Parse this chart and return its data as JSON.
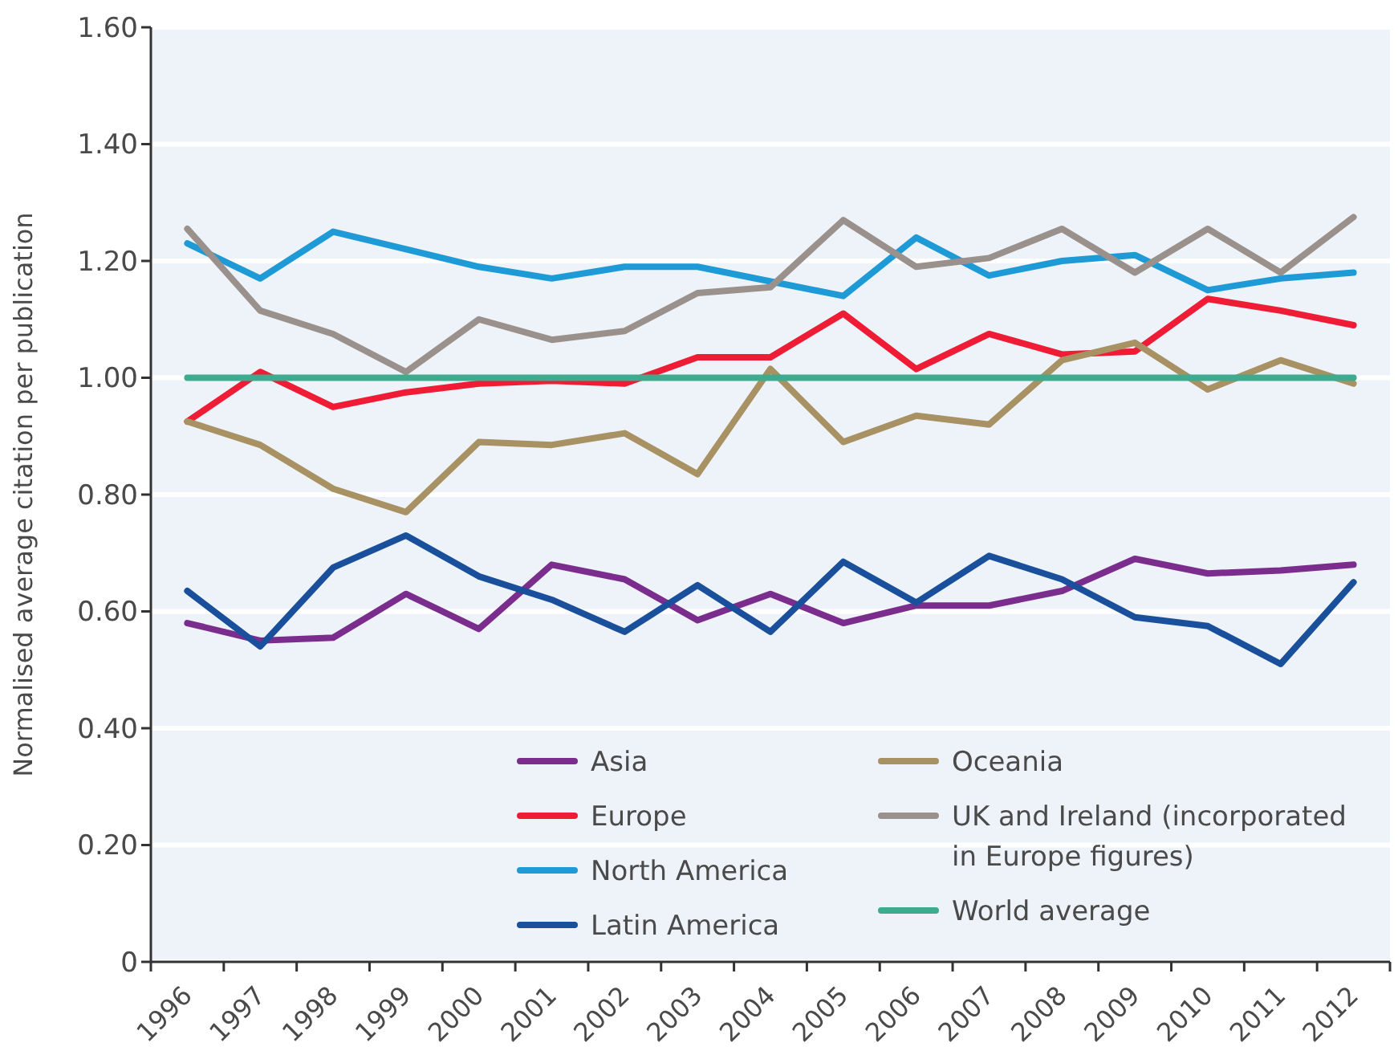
{
  "chart_data": {
    "type": "line",
    "ylabel": "Normalised average citation per publication",
    "categories": [
      "1996",
      "1997",
      "1998",
      "1999",
      "2000",
      "2001",
      "2002",
      "2003",
      "2004",
      "2005",
      "2006",
      "2007",
      "2008",
      "2009",
      "2010",
      "2011",
      "2012"
    ],
    "series": [
      {
        "name": "Asia",
        "color": "#7b2d8e",
        "values": [
          0.58,
          0.55,
          0.555,
          0.63,
          0.57,
          0.68,
          0.655,
          0.585,
          0.63,
          0.58,
          0.61,
          0.61,
          0.635,
          0.69,
          0.665,
          0.67,
          0.68
        ]
      },
      {
        "name": "Europe",
        "color": "#ee1c35",
        "values": [
          0.925,
          1.01,
          0.95,
          0.975,
          0.99,
          0.995,
          0.99,
          1.035,
          1.035,
          1.11,
          1.015,
          1.075,
          1.04,
          1.045,
          1.135,
          1.115,
          1.09
        ]
      },
      {
        "name": "North America",
        "color": "#1e9ad6",
        "values": [
          1.23,
          1.17,
          1.25,
          1.22,
          1.19,
          1.17,
          1.19,
          1.19,
          1.165,
          1.14,
          1.24,
          1.175,
          1.2,
          1.21,
          1.15,
          1.17,
          1.18
        ]
      },
      {
        "name": "Latin America",
        "color": "#1a4f9c",
        "values": [
          0.635,
          0.54,
          0.675,
          0.73,
          0.66,
          0.62,
          0.565,
          0.645,
          0.565,
          0.685,
          0.615,
          0.695,
          0.655,
          0.59,
          0.575,
          0.51,
          0.65
        ]
      },
      {
        "name": "Oceania",
        "color": "#a89162",
        "values": [
          0.925,
          0.885,
          0.81,
          0.77,
          0.89,
          0.885,
          0.905,
          0.835,
          1.015,
          0.89,
          0.935,
          0.92,
          1.03,
          1.06,
          0.98,
          1.03,
          0.99
        ]
      },
      {
        "name": "UK and Ireland (incorporated in Europe figures)",
        "color": "#9a918c",
        "values": [
          1.255,
          1.115,
          1.075,
          1.01,
          1.1,
          1.065,
          1.08,
          1.145,
          1.155,
          1.27,
          1.19,
          1.205,
          1.255,
          1.18,
          1.255,
          1.18,
          1.275
        ]
      },
      {
        "name": "World average",
        "color": "#3fab8e",
        "values": [
          1,
          1,
          1,
          1,
          1,
          1,
          1,
          1,
          1,
          1,
          1,
          1,
          1,
          1,
          1,
          1,
          1
        ]
      }
    ],
    "ylim": [
      0,
      1.6
    ],
    "yticks": [
      0,
      {
        "value": 0.2,
        "label": "0.20"
      },
      {
        "value": 0.4,
        "label": "0.40"
      },
      {
        "value": 0.6,
        "label": "0.60"
      },
      {
        "value": 0.8,
        "label": "0.80"
      },
      {
        "value": 1.0,
        "label": "1.00"
      },
      {
        "value": 1.2,
        "label": "1.20"
      },
      {
        "value": 1.4,
        "label": "1.40"
      },
      {
        "value": 1.6,
        "label": "1.60"
      }
    ],
    "grid": "y",
    "legend": "bottom",
    "marker": "none",
    "line_style": "solid"
  }
}
